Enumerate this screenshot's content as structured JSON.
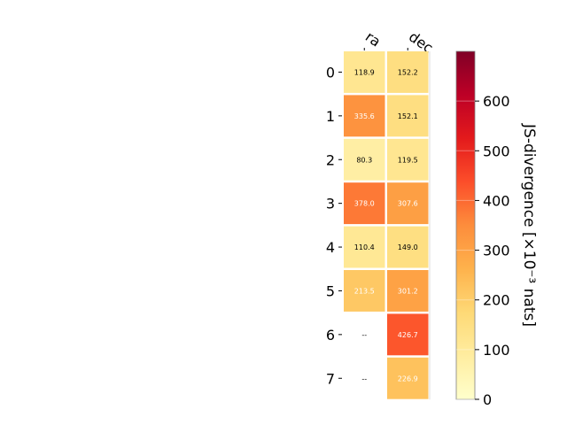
{
  "chart_data": {
    "type": "heatmap",
    "columns": [
      "ra",
      "dec"
    ],
    "rows": [
      "0",
      "1",
      "2",
      "3",
      "4",
      "5",
      "6",
      "7"
    ],
    "values": [
      [
        118.9,
        152.2
      ],
      [
        335.6,
        152.1
      ],
      [
        80.3,
        119.5
      ],
      [
        378.0,
        307.6
      ],
      [
        110.4,
        149.0
      ],
      [
        213.5,
        301.2
      ],
      [
        null,
        426.7
      ],
      [
        null,
        226.9
      ]
    ],
    "missing_label": "--",
    "colorbar": {
      "label": "JS-divergence [×10⁻³ nats]",
      "range": [
        0,
        700
      ],
      "ticks": [
        0,
        100,
        200,
        300,
        400,
        500,
        600
      ],
      "colormap": "YlOrRd"
    }
  }
}
